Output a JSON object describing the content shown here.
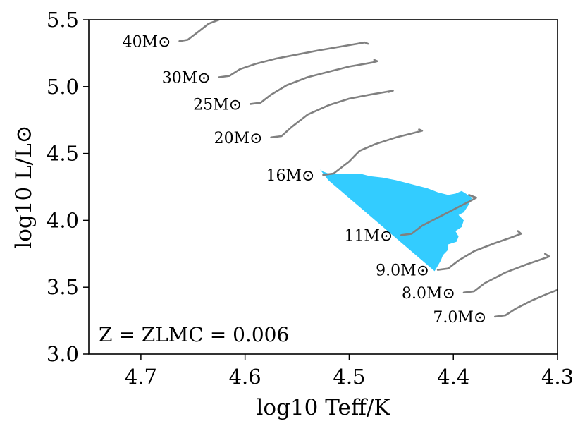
{
  "chart_data": {
    "type": "line",
    "xlabel": "log10 Teff/K",
    "ylabel": "log10 L/L⊙",
    "xlim": [
      4.75,
      4.3
    ],
    "ylim": [
      3.0,
      5.5
    ],
    "x_inverted": true,
    "xticks": [
      4.7,
      4.6,
      4.5,
      4.4,
      4.3
    ],
    "yticks": [
      3.0,
      3.5,
      4.0,
      4.5,
      5.0,
      5.5
    ],
    "grid": false,
    "annotation": "Z = ZLMC = 0.006",
    "track_color": "#808080",
    "region_color": "#33ccff",
    "series": [
      {
        "name": "40M⊙",
        "x": [
          4.663,
          4.655,
          4.645,
          4.635,
          4.625
        ],
        "y": [
          5.34,
          5.35,
          5.41,
          5.47,
          5.5
        ]
      },
      {
        "name": "30M⊙",
        "x": [
          4.625,
          4.615,
          4.605,
          4.59,
          4.57,
          4.55,
          4.53,
          4.5,
          4.485,
          4.482
        ],
        "y": [
          5.07,
          5.08,
          5.13,
          5.17,
          5.21,
          5.24,
          5.27,
          5.31,
          5.33,
          5.32
        ]
      },
      {
        "name": "25M⊙",
        "x": [
          4.595,
          4.585,
          4.575,
          4.56,
          4.54,
          4.52,
          4.5,
          4.478,
          4.473,
          4.476
        ],
        "y": [
          4.87,
          4.88,
          4.94,
          5.01,
          5.07,
          5.11,
          5.15,
          5.18,
          5.19,
          5.2
        ]
      },
      {
        "name": "20M⊙",
        "x": [
          4.575,
          4.565,
          4.555,
          4.54,
          4.52,
          4.5,
          4.48,
          4.465,
          4.458,
          4.462
        ],
        "y": [
          4.62,
          4.63,
          4.7,
          4.79,
          4.86,
          4.91,
          4.94,
          4.96,
          4.97,
          4.96
        ]
      },
      {
        "name": "16M⊙",
        "x": [
          4.525,
          4.515,
          4.5,
          4.49,
          4.475,
          4.455,
          4.44,
          4.43,
          4.433
        ],
        "y": [
          4.34,
          4.35,
          4.44,
          4.52,
          4.57,
          4.62,
          4.65,
          4.67,
          4.68
        ]
      },
      {
        "name": "11M⊙",
        "x": [
          4.45,
          4.44,
          4.43,
          4.41,
          4.395,
          4.385,
          4.378,
          4.385
        ],
        "y": [
          3.89,
          3.9,
          3.96,
          4.04,
          4.1,
          4.14,
          4.17,
          4.19
        ]
      },
      {
        "name": "9.0M⊙",
        "x": [
          4.415,
          4.405,
          4.395,
          4.38,
          4.36,
          4.345,
          4.335,
          4.338
        ],
        "y": [
          3.63,
          3.64,
          3.7,
          3.77,
          3.83,
          3.87,
          3.9,
          3.92
        ]
      },
      {
        "name": "8.0M⊙",
        "x": [
          4.39,
          4.38,
          4.37,
          4.35,
          4.33,
          4.315,
          4.308,
          4.312
        ],
        "y": [
          3.46,
          3.47,
          3.53,
          3.61,
          3.67,
          3.71,
          3.73,
          3.75
        ]
      },
      {
        "name": "7.0M⊙",
        "x": [
          4.36,
          4.35,
          4.34,
          4.325,
          4.31,
          4.3
        ],
        "y": [
          3.28,
          3.29,
          3.34,
          3.4,
          3.45,
          3.48
        ]
      }
    ],
    "region": {
      "x": [
        4.528,
        4.525,
        4.52,
        4.505,
        4.49,
        4.48,
        4.468,
        4.455,
        4.445,
        4.435,
        4.425,
        4.415,
        4.405,
        4.398,
        4.392,
        4.388,
        4.382,
        4.385,
        4.39,
        4.395,
        4.39,
        4.392,
        4.398,
        4.395,
        4.397,
        4.405,
        4.405,
        4.41,
        4.412,
        4.415,
        4.418,
        4.43,
        4.445,
        4.46,
        4.475,
        4.49,
        4.505,
        4.52,
        4.528
      ],
      "y": [
        4.38,
        4.365,
        4.35,
        4.35,
        4.35,
        4.33,
        4.32,
        4.3,
        4.28,
        4.26,
        4.24,
        4.21,
        4.19,
        4.2,
        4.22,
        4.2,
        4.17,
        4.12,
        4.06,
        4.04,
        4.0,
        3.95,
        3.92,
        3.88,
        3.84,
        3.82,
        3.78,
        3.74,
        3.7,
        3.66,
        3.62,
        3.7,
        3.8,
        3.9,
        4.0,
        4.1,
        4.2,
        4.3,
        4.38
      ]
    }
  }
}
